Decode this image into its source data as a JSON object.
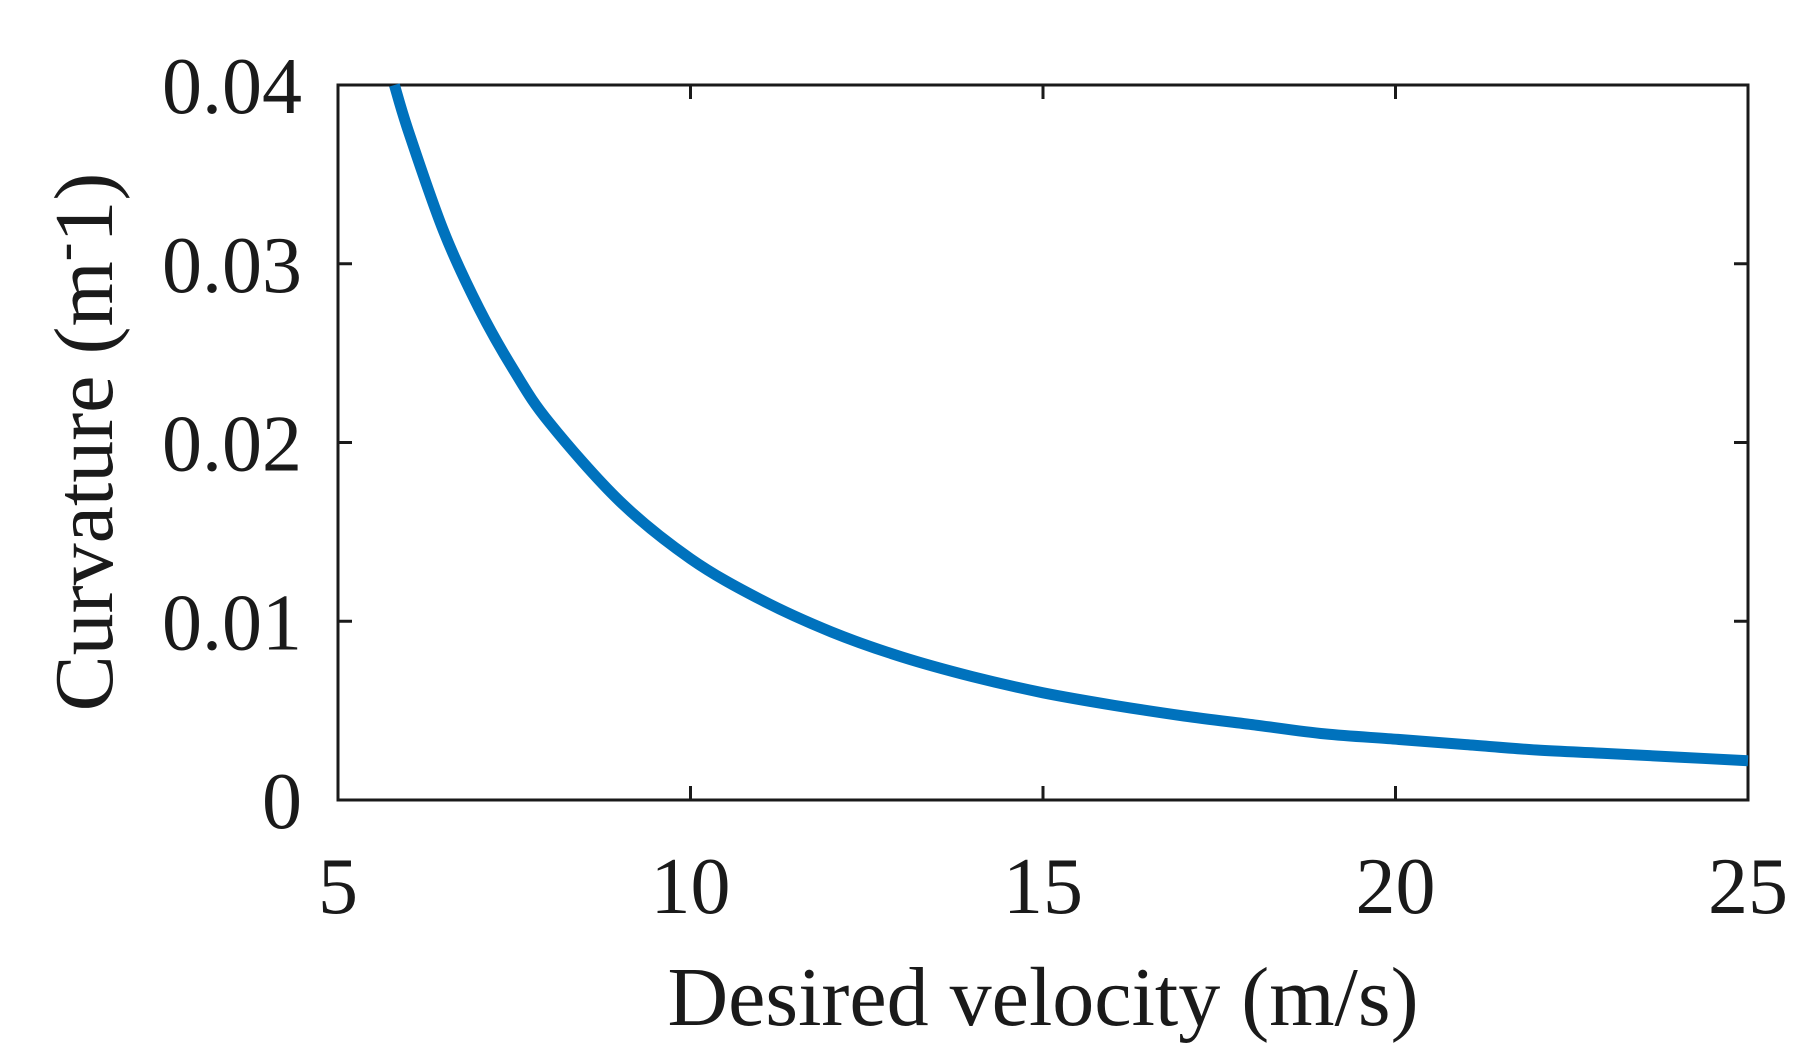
{
  "chart_data": {
    "type": "line",
    "title": "",
    "xlabel": "Desired velocity (m/s)",
    "ylabel": "Curvature (m",
    "ylabel_sup": "-",
    "ylabel_tail": "1)",
    "xlim": [
      5,
      25
    ],
    "ylim": [
      0,
      0.04
    ],
    "xticks": [
      5,
      10,
      15,
      20,
      25
    ],
    "xtick_labels": [
      "5",
      "10",
      "15",
      "20",
      "25"
    ],
    "yticks": [
      0,
      0.01,
      0.02,
      0.03,
      0.04
    ],
    "ytick_labels": [
      "0",
      "0.01",
      "0.02",
      "0.03",
      "0.04"
    ],
    "grid": false,
    "legend": "none",
    "series": [
      {
        "name": "curvature",
        "color": "#0072BD",
        "x": [
          5.8,
          6,
          6.5,
          7,
          7.5,
          8,
          9,
          10,
          11,
          12,
          13,
          14,
          15,
          16,
          17,
          18,
          19,
          20,
          21,
          22,
          23,
          24,
          25
        ],
        "y": [
          0.04,
          0.0374,
          0.0318,
          0.0275,
          0.024,
          0.0211,
          0.0167,
          0.0135,
          0.0112,
          0.0094,
          0.008,
          0.0069,
          0.006,
          0.0053,
          0.0047,
          0.0042,
          0.0037,
          0.0034,
          0.0031,
          0.0028,
          0.0026,
          0.0024,
          0.0022
        ]
      }
    ]
  }
}
